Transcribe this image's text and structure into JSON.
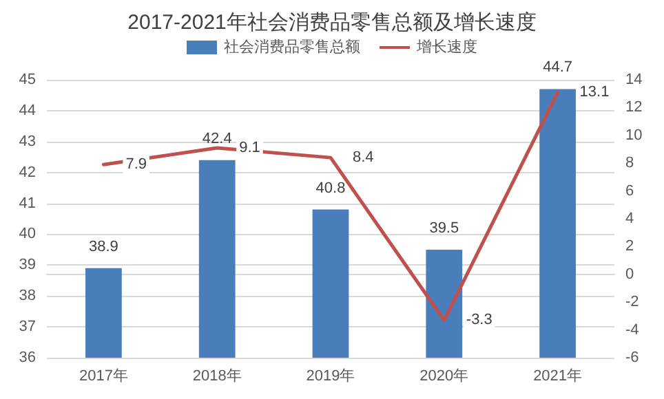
{
  "chart_data": {
    "type": "bar",
    "title": "2017-2021年社会消费品零售总额及增长速度",
    "categories": [
      "2017年",
      "2018年",
      "2019年",
      "2020年",
      "2021年"
    ],
    "series": [
      {
        "name": "社会消费品零售总额",
        "type": "bar",
        "color": "#4a7ebb",
        "values": [
          38.9,
          42.4,
          40.8,
          39.5,
          44.7
        ]
      },
      {
        "name": "增长速度",
        "type": "line",
        "axis": "y2",
        "color": "#c0504d",
        "values": [
          7.9,
          9.1,
          8.4,
          -3.3,
          13.1
        ]
      }
    ],
    "ylim": [
      36,
      45
    ],
    "yticks": [
      36,
      37,
      38,
      39,
      40,
      41,
      42,
      43,
      44,
      45
    ],
    "y2lim": [
      -6,
      14
    ],
    "y2ticks": [
      -6,
      -4,
      -2,
      0,
      2,
      4,
      6,
      8,
      10,
      12,
      14
    ],
    "grid": "y",
    "legend": "top",
    "data_labels": true,
    "marker": "none",
    "line_style": "solid"
  }
}
